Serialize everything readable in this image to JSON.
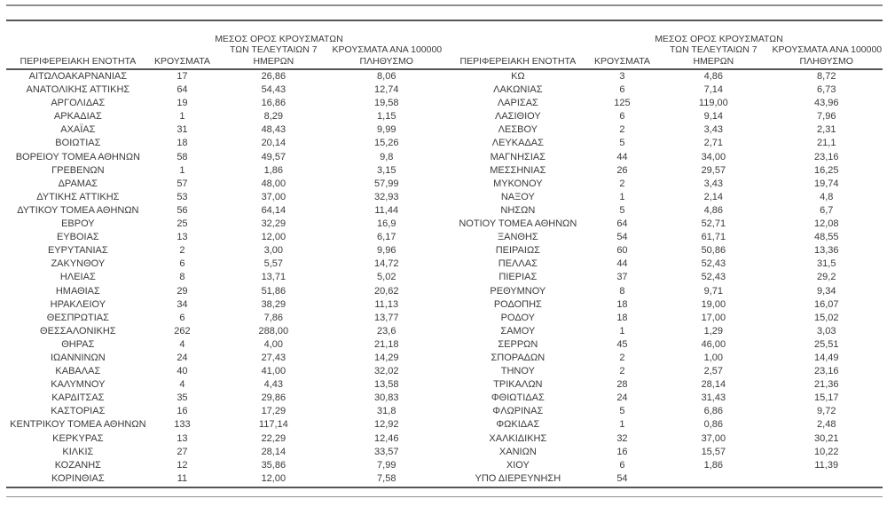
{
  "colors": {
    "text": "#3b3b3b",
    "rule_dark": "#555555",
    "rule_gray": "#8f8f8f",
    "background": "#ffffff"
  },
  "columns": [
    {
      "key": "region",
      "label": "ΠΕΡΙΦΕΡΕΙΑΚΗ ΕΝΟΤΗΤΑ",
      "lines": [
        "ΠΕΡΙΦΕΡΕΙΑΚΗ ΕΝΟΤΗΤΑ"
      ]
    },
    {
      "key": "cases",
      "label": "ΚΡΟΥΣΜΑΤΑ",
      "lines": [
        "ΚΡΟΥΣΜΑΤΑ"
      ]
    },
    {
      "key": "avg7",
      "label": "ΜΕΣΟΣ ΟΡΟΣ ΚΡΟΥΣΜΑΤΩΝ ΤΩΝ ΤΕΛΕΥΤΑΙΩΝ 7 ΗΜΕΡΩΝ",
      "lines": [
        "ΜΕΣΟΣ ΟΡΟΣ ΚΡΟΥΣΜΑΤΩΝ",
        "ΤΩΝ ΤΕΛΕΥΤΑΙΩΝ 7",
        "ΗΜΕΡΩΝ"
      ]
    },
    {
      "key": "per100k",
      "label": "ΚΡΟΥΣΜΑΤΑ ΑΝΑ 100000 ΠΛΗΘΥΣΜΟ",
      "lines": [
        "ΚΡΟΥΣΜΑΤΑ ΑΝΑ 100000",
        "ΠΛΗΘΥΣΜΟ"
      ]
    }
  ],
  "tables": [
    {
      "rows": [
        [
          "ΑΙΤΩΛΟΑΚΑΡΝΑΝΙΑΣ",
          "17",
          "26,86",
          "8,06"
        ],
        [
          "ΑΝΑΤΟΛΙΚΗΣ ΑΤΤΙΚΗΣ",
          "64",
          "54,43",
          "12,74"
        ],
        [
          "ΑΡΓΟΛΙΔΑΣ",
          "19",
          "16,86",
          "19,58"
        ],
        [
          "ΑΡΚΑΔΙΑΣ",
          "1",
          "8,29",
          "1,15"
        ],
        [
          "ΑΧΑΪΑΣ",
          "31",
          "48,43",
          "9,99"
        ],
        [
          "ΒΟΙΩΤΙΑΣ",
          "18",
          "20,14",
          "15,26"
        ],
        [
          "ΒΟΡΕΙΟΥ ΤΟΜΕΑ ΑΘΗΝΩΝ",
          "58",
          "49,57",
          "9,8"
        ],
        [
          "ΓΡΕΒΕΝΩΝ",
          "1",
          "1,86",
          "3,15"
        ],
        [
          "ΔΡΑΜΑΣ",
          "57",
          "48,00",
          "57,99"
        ],
        [
          "ΔΥΤΙΚΗΣ ΑΤΤΙΚΗΣ",
          "53",
          "37,00",
          "32,93"
        ],
        [
          "ΔΥΤΙΚΟΥ ΤΟΜΕΑ ΑΘΗΝΩΝ",
          "56",
          "64,14",
          "11,44"
        ],
        [
          "ΕΒΡΟΥ",
          "25",
          "32,29",
          "16,9"
        ],
        [
          "ΕΥΒΟΙΑΣ",
          "13",
          "12,00",
          "6,17"
        ],
        [
          "ΕΥΡΥΤΑΝΙΑΣ",
          "2",
          "3,00",
          "9,96"
        ],
        [
          "ΖΑΚΥΝΘΟΥ",
          "6",
          "5,57",
          "14,72"
        ],
        [
          "ΗΛΕΙΑΣ",
          "8",
          "13,71",
          "5,02"
        ],
        [
          "ΗΜΑΘΙΑΣ",
          "29",
          "51,86",
          "20,62"
        ],
        [
          "ΗΡΑΚΛΕΙΟΥ",
          "34",
          "38,29",
          "11,13"
        ],
        [
          "ΘΕΣΠΡΩΤΙΑΣ",
          "6",
          "7,86",
          "13,77"
        ],
        [
          "ΘΕΣΣΑΛΟΝΙΚΗΣ",
          "262",
          "288,00",
          "23,6"
        ],
        [
          "ΘΗΡΑΣ",
          "4",
          "4,00",
          "21,18"
        ],
        [
          "ΙΩΑΝΝΙΝΩΝ",
          "24",
          "27,43",
          "14,29"
        ],
        [
          "ΚΑΒΑΛΑΣ",
          "40",
          "41,00",
          "32,02"
        ],
        [
          "ΚΑΛΥΜΝΟΥ",
          "4",
          "4,43",
          "13,58"
        ],
        [
          "ΚΑΡΔΙΤΣΑΣ",
          "35",
          "29,86",
          "30,83"
        ],
        [
          "ΚΑΣΤΟΡΙΑΣ",
          "16",
          "17,29",
          "31,8"
        ],
        [
          "ΚΕΝΤΡΙΚΟΥ ΤΟΜΕΑ ΑΘΗΝΩΝ",
          "133",
          "117,14",
          "12,92"
        ],
        [
          "ΚΕΡΚΥΡΑΣ",
          "13",
          "22,29",
          "12,46"
        ],
        [
          "ΚΙΛΚΙΣ",
          "27",
          "28,14",
          "33,57"
        ],
        [
          "ΚΟΖΑΝΗΣ",
          "12",
          "35,86",
          "7,99"
        ],
        [
          "ΚΟΡΙΝΘΙΑΣ",
          "11",
          "12,00",
          "7,58"
        ]
      ]
    },
    {
      "rows": [
        [
          "ΚΩ",
          "3",
          "4,86",
          "8,72"
        ],
        [
          "ΛΑΚΩΝΙΑΣ",
          "6",
          "7,14",
          "6,73"
        ],
        [
          "ΛΑΡΙΣΑΣ",
          "125",
          "119,00",
          "43,96"
        ],
        [
          "ΛΑΣΙΘΙΟΥ",
          "6",
          "9,14",
          "7,96"
        ],
        [
          "ΛΕΣΒΟΥ",
          "2",
          "3,43",
          "2,31"
        ],
        [
          "ΛΕΥΚΑΔΑΣ",
          "5",
          "2,71",
          "21,1"
        ],
        [
          "ΜΑΓΝΗΣΙΑΣ",
          "44",
          "34,00",
          "23,16"
        ],
        [
          "ΜΕΣΣΗΝΙΑΣ",
          "26",
          "29,57",
          "16,25"
        ],
        [
          "ΜΥΚΟΝΟΥ",
          "2",
          "3,43",
          "19,74"
        ],
        [
          "ΝΑΞΟΥ",
          "1",
          "2,14",
          "4,8"
        ],
        [
          "ΝΗΣΩΝ",
          "5",
          "4,86",
          "6,7"
        ],
        [
          "ΝΟΤΙΟΥ ΤΟΜΕΑ ΑΘΗΝΩΝ",
          "64",
          "52,71",
          "12,08"
        ],
        [
          "ΞΑΝΘΗΣ",
          "54",
          "61,71",
          "48,55"
        ],
        [
          "ΠΕΙΡΑΙΩΣ",
          "60",
          "50,86",
          "13,36"
        ],
        [
          "ΠΕΛΛΑΣ",
          "44",
          "52,43",
          "31,5"
        ],
        [
          "ΠΙΕΡΙΑΣ",
          "37",
          "52,43",
          "29,2"
        ],
        [
          "ΡΕΘΥΜΝΟΥ",
          "8",
          "9,71",
          "9,34"
        ],
        [
          "ΡΟΔΟΠΗΣ",
          "18",
          "19,00",
          "16,07"
        ],
        [
          "ΡΟΔΟΥ",
          "18",
          "17,00",
          "15,02"
        ],
        [
          "ΣΑΜΟΥ",
          "1",
          "1,29",
          "3,03"
        ],
        [
          "ΣΕΡΡΩΝ",
          "45",
          "46,00",
          "25,51"
        ],
        [
          "ΣΠΟΡΑΔΩΝ",
          "2",
          "1,00",
          "14,49"
        ],
        [
          "ΤΗΝΟΥ",
          "2",
          "2,57",
          "23,16"
        ],
        [
          "ΤΡΙΚΑΛΩΝ",
          "28",
          "28,14",
          "21,36"
        ],
        [
          "ΦΘΙΩΤΙΔΑΣ",
          "24",
          "31,43",
          "15,17"
        ],
        [
          "ΦΛΩΡΙΝΑΣ",
          "5",
          "6,86",
          "9,72"
        ],
        [
          "ΦΩΚΙΔΑΣ",
          "1",
          "0,86",
          "2,48"
        ],
        [
          "ΧΑΛΚΙΔΙΚΗΣ",
          "32",
          "37,00",
          "30,21"
        ],
        [
          "ΧΑΝΙΩΝ",
          "16",
          "15,57",
          "10,22"
        ],
        [
          "ΧΙΟΥ",
          "6",
          "1,86",
          "11,39"
        ],
        [
          "ΥΠΟ ΔΙΕΡΕΥΝΗΣΗ",
          "54",
          "",
          ""
        ]
      ]
    }
  ]
}
